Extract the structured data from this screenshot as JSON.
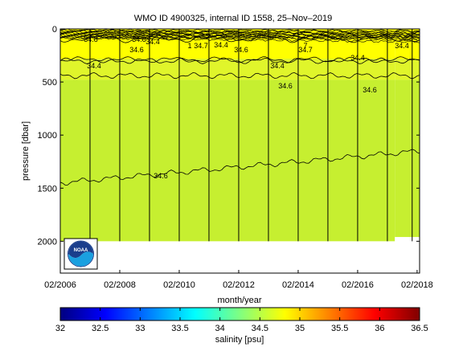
{
  "chart_data": [
    {
      "type": "heatmap",
      "title": "WMO ID 4900325, internal ID 1558, 25–Nov–2019",
      "xlabel": "month/year",
      "ylabel": "pressure [dbar]",
      "x_tick_labels": [
        "02/2006",
        "02/2008",
        "02/2010",
        "02/2012",
        "02/2014",
        "02/2016",
        "02/2018"
      ],
      "xlim": [
        "2006-02",
        "2018-03"
      ],
      "y_ticks": [
        0,
        500,
        1000,
        1500,
        2000
      ],
      "ylim": [
        2300,
        0
      ],
      "y_reversed": true,
      "grid": "off",
      "profile_dates": [
        "2007-02",
        "2008-02",
        "2009-02",
        "2010-02",
        "2011-02",
        "2012-02",
        "2013-02",
        "2014-02",
        "2015-02",
        "2016-02",
        "2017-02",
        "2017-12"
      ],
      "data_coverage": [
        {
          "start": "2006-02",
          "end": "2017-05",
          "max_pressure": 2000
        },
        {
          "start": "2017-05",
          "end": "2018-03",
          "max_pressure": 1960
        }
      ],
      "layers": [
        {
          "range": "35-35.5",
          "color": "#ffff00",
          "top_pressure": 0,
          "bottom_pressure": 280
        },
        {
          "range": "34.5-35",
          "color": "#e0f52b",
          "bottom_pressure": 480
        },
        {
          "range": "34.4-34.5",
          "color": "#c6ef30",
          "bottom_pressure": 2000
        }
      ],
      "contours": [
        {
          "label": "34.8",
          "approx_pressure": 90
        },
        {
          "label": "34.4",
          "approx_pressure": 290
        },
        {
          "label": "34.7",
          "approx_pressure": 300
        },
        {
          "label": "34.6",
          "approx_pressure": 440
        },
        {
          "label": "34.6",
          "approx_pressure": 1400
        }
      ],
      "contour_label_texts": [
        "34.8",
        "34.8",
        "34.4",
        "34.7",
        "34.6",
        "34.6",
        "34.6",
        "34.4",
        "34.4",
        "34.4",
        "34.4",
        "34.7",
        "34.6",
        "34.6",
        "34.4",
        "7",
        "1"
      ]
    },
    {
      "type": "colorbar",
      "xlabel": "salinity [psu]",
      "range": [
        32,
        36.5
      ],
      "tick_labels": [
        "32",
        "32.5",
        "33",
        "33.5",
        "34",
        "34.5",
        "35",
        "35.5",
        "36",
        "36.5"
      ],
      "colormap": "jet",
      "colors": [
        "#000080",
        "#0000ff",
        "#0080ff",
        "#00ffff",
        "#80ff80",
        "#ffff00",
        "#ff8000",
        "#ff0000",
        "#800000"
      ]
    }
  ],
  "logo": {
    "text": "NOAA",
    "name": "noaa-logo"
  }
}
